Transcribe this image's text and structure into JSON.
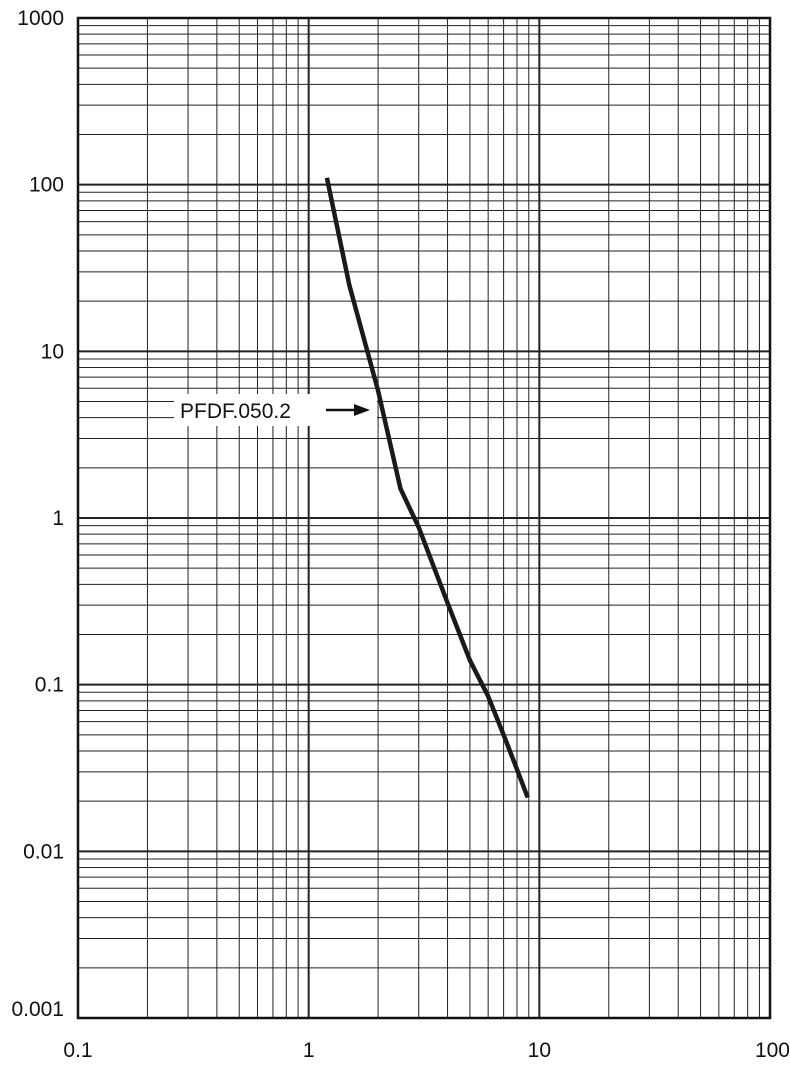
{
  "chart_data": {
    "type": "line",
    "title": "",
    "xlabel": "",
    "ylabel": "",
    "x_scale": "log",
    "y_scale": "log",
    "xlim": [
      0.1,
      100
    ],
    "ylim": [
      0.001,
      1000
    ],
    "grid": true,
    "x_tick_labels": [
      "0.1",
      "1",
      "10",
      "100"
    ],
    "y_tick_labels": [
      "1000",
      "100",
      "10",
      "1",
      "0.1",
      "0.01",
      "0.001"
    ],
    "series": [
      {
        "name": "PFDF.050.2",
        "color": "#1a1a1a",
        "x": [
          1.2,
          1.5,
          2.0,
          2.5,
          3.0,
          4.0,
          5.0,
          6.0,
          7.0,
          8.0,
          8.9
        ],
        "y": [
          110,
          25,
          5.8,
          1.5,
          0.88,
          0.31,
          0.14,
          0.085,
          0.05,
          0.031,
          0.021
        ]
      }
    ],
    "annotations": [
      {
        "text": "PFDF.050.2",
        "arrow_to_series": "PFDF.050.2"
      }
    ]
  }
}
